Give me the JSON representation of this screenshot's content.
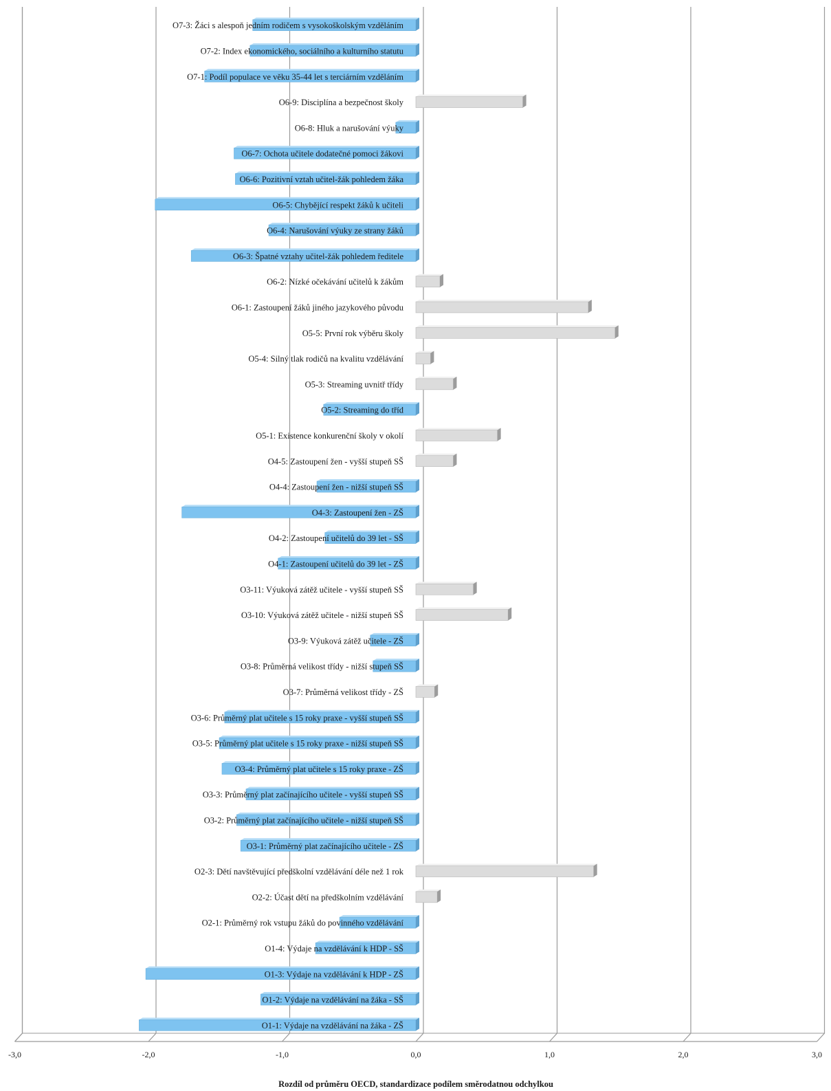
{
  "chart_data": {
    "type": "bar",
    "orientation": "horizontal",
    "xlabel": "Rozdíl od průměru OECD, standardizace podílem směrodatnou odchylkou",
    "xlim": [
      -3.0,
      3.0
    ],
    "xticks": [
      "-3,0",
      "-2,0",
      "-1,0",
      "0,0",
      "1,0",
      "2,0",
      "3,0"
    ],
    "grid": true,
    "colors": {
      "negative": "#7ec3f0",
      "positive": "#dcdcdc"
    },
    "categories": [
      "O7-3: Žáci s alespoň jedním rodičem s vysokoškolským vzděláním",
      "O7-2: Index ekonomického, sociálního a kulturního statutu",
      "O7-1: Podíl populace ve věku 35-44 let s terciárním vzděláním",
      "O6-9: Disciplína a bezpečnost školy",
      "O6-8: Hluk a narušování výuky",
      "O6-7: Ochota učitele dodatečné pomoci žákovi",
      "O6-6: Pozitivní vztah učitel-žák pohledem žáka",
      "O6-5: Chybějící respekt žáků k učiteli",
      "O6-4: Narušování výuky ze strany žáků",
      "O6-3: Špatné vztahy učitel-žák pohledem ředitele",
      "O6-2: Nízké očekávání učitelů k žákům",
      "O6-1: Zastoupení žáků jiného jazykového původu",
      "O5-5: První rok výběru školy",
      "O5-4: Silný tlak rodičů na kvalitu vzdělávání",
      "O5-3: Streaming uvnitř třídy",
      "O5-2: Streaming do tříd",
      "O5-1: Existence konkurenční školy v okolí",
      "O4-5: Zastoupení žen - vyšší stupeň SŠ",
      "O4-4: Zastoupení žen - nižší stupeň SŠ",
      "O4-3: Zastoupení žen - ZŠ",
      "O4-2: Zastoupení učitelů do 39 let - SŠ",
      "O4-1: Zastoupení učitelů do 39 let - ZŠ",
      "O3-11: Výuková zátěž učitele - vyšší stupeň SŠ",
      "O3-10: Výuková zátěž učitele - nižší stupeň SŠ",
      "O3-9: Výuková zátěž učitele - ZŠ",
      "O3-8: Průměrná velikost třídy - nižší stupeň SŠ",
      "O3-7: Průměrná velikost třídy - ZŠ",
      "O3-6: Průměrný plat učitele s 15 roky praxe - vyšší stupeň SŠ",
      "O3-5: Průměrný plat učitele s 15 roky praxe - nižší stupeň SŠ",
      "O3-4: Průměrný plat učitele s 15 roky praxe - ZŠ",
      "O3-3: Průměrný plat začínajícího učitele - vyšší stupeň SŠ",
      "O3-2: Průměrný plat začínajícího učitele - nižší stupeň SŠ",
      "O3-1: Průměrný plat začínajícího učitele - ZŠ",
      "O2-3: Dětí navštěvující předškolní vzdělávání déle než 1 rok",
      "O2-2: Účast dětí na předškolním vzdělávání",
      "O2-1: Průměrný rok vstupu žáků do povinného vzdělávání",
      "O1-4: Výdaje na vzdělávání k HDP - SŠ",
      "O1-3: Výdaje na vzdělávání k HDP - ZŠ",
      "O1-2: Výdaje na vzdělávání na žáka - SŠ",
      "O1-1: Výdaje na vzdělávání na žáka - ZŠ"
    ],
    "values": [
      -1.22,
      -1.24,
      -1.58,
      0.8,
      -0.15,
      -1.36,
      -1.35,
      -1.95,
      -1.1,
      -1.68,
      0.18,
      1.29,
      1.49,
      0.11,
      0.28,
      -0.69,
      0.61,
      0.28,
      -0.74,
      -1.75,
      -0.68,
      -1.03,
      0.43,
      0.69,
      -0.34,
      -0.32,
      0.14,
      -1.43,
      -1.47,
      -1.45,
      -1.27,
      -1.34,
      -1.31,
      1.33,
      0.16,
      -0.57,
      -0.75,
      -2.02,
      -1.16,
      -2.07
    ]
  }
}
